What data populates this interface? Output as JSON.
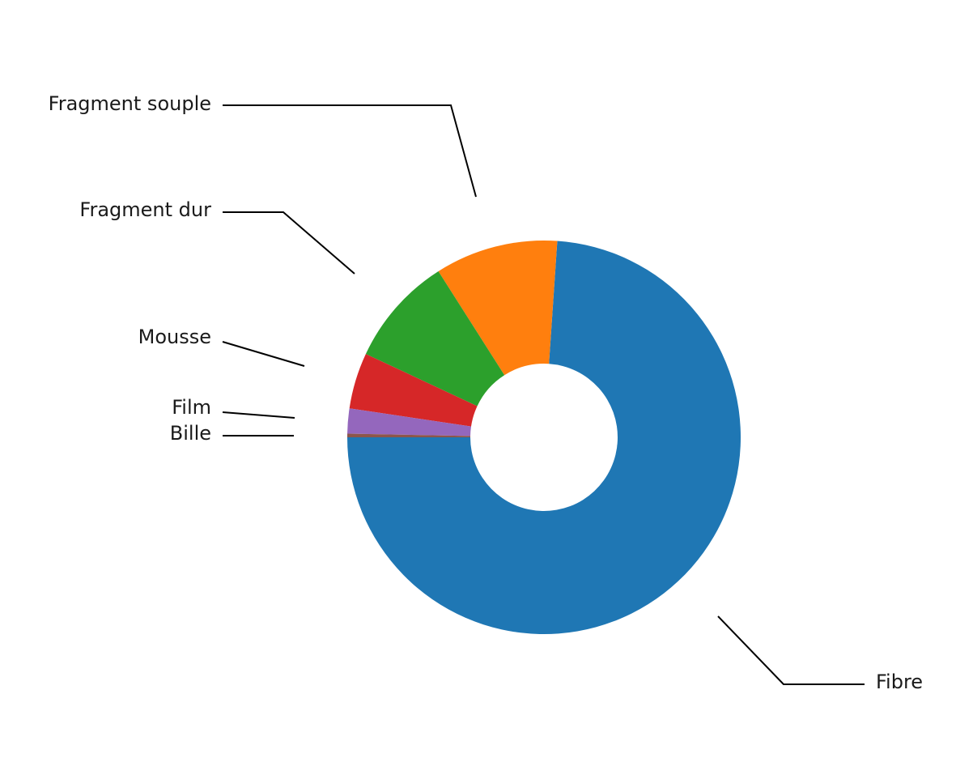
{
  "chart_data": {
    "type": "pie",
    "donut": true,
    "start_angle_deg": 180,
    "direction": "counterclockwise",
    "slices": [
      {
        "label": "Fibre",
        "value": 75.4,
        "color": "#1f77b4"
      },
      {
        "label": "Fragment souple",
        "value": 10.3,
        "color": "#ff7f0e"
      },
      {
        "label": "Fragment dur",
        "value": 9.2,
        "color": "#2ca02c"
      },
      {
        "label": "Mousse",
        "value": 4.7,
        "color": "#d62728"
      },
      {
        "label": "Film",
        "value": 2.1,
        "color": "#9467bd"
      },
      {
        "label": "Bille",
        "value": 0.3,
        "color": "#8c564b"
      }
    ],
    "legend": "none",
    "labels_with_leader_lines": true
  }
}
